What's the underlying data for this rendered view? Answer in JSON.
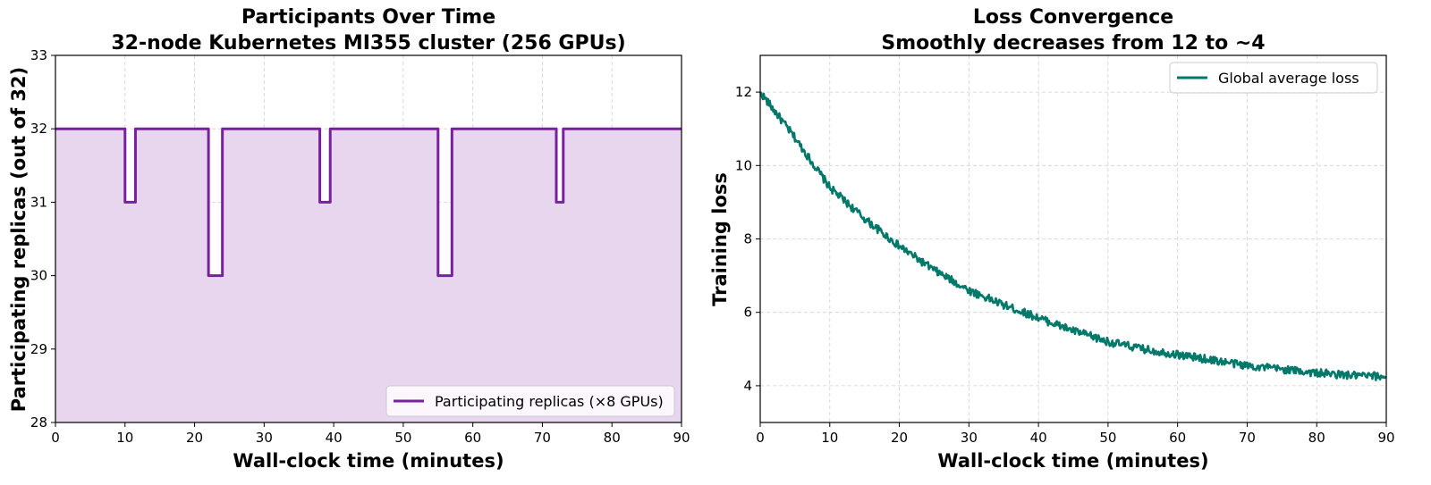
{
  "chart_data": [
    {
      "type": "line",
      "title_lines": [
        "Participants Over Time",
        "32-node Kubernetes MI355 cluster (256 GPUs)"
      ],
      "xlabel": "Wall-clock time (minutes)",
      "ylabel": "Participating replicas (out of 32)",
      "xlim": [
        0,
        90
      ],
      "ylim": [
        28,
        33
      ],
      "xticks": [
        0,
        10,
        20,
        30,
        40,
        50,
        60,
        70,
        80,
        90
      ],
      "yticks": [
        28,
        29,
        30,
        31,
        32,
        33
      ],
      "grid": true,
      "step": true,
      "filled": true,
      "legend_position": "lower-right",
      "series": [
        {
          "name": "Participating replicas (×8 GPUs)",
          "color": "#7B1FA2",
          "fill_color": "#E8D5EE",
          "x": [
            0,
            10,
            10,
            11.5,
            11.5,
            22,
            22,
            24,
            24,
            38,
            38,
            39.5,
            39.5,
            55,
            55,
            57,
            57,
            72,
            72,
            73,
            73,
            90
          ],
          "y": [
            32,
            32,
            31,
            31,
            32,
            32,
            30,
            30,
            32,
            32,
            31,
            31,
            32,
            32,
            30,
            30,
            32,
            32,
            31,
            31,
            32,
            32
          ]
        }
      ]
    },
    {
      "type": "line",
      "title_lines": [
        "Loss Convergence",
        "Smoothly decreases from 12 to ~4"
      ],
      "xlabel": "Wall-clock time (minutes)",
      "ylabel": "Training loss",
      "xlim": [
        0,
        90
      ],
      "ylim": [
        3,
        13
      ],
      "xticks": [
        0,
        10,
        20,
        30,
        40,
        50,
        60,
        70,
        80,
        90
      ],
      "yticks": [
        4,
        6,
        8,
        10,
        12
      ],
      "grid": true,
      "legend_position": "upper-right",
      "series": [
        {
          "name": "Global average loss",
          "color": "#00796B",
          "x": [
            0,
            5,
            10,
            15,
            20,
            25,
            30,
            35,
            40,
            45,
            50,
            55,
            60,
            65,
            70,
            75,
            80,
            85,
            90
          ],
          "y": [
            12.0,
            10.75,
            9.4,
            8.55,
            7.8,
            7.15,
            6.6,
            6.2,
            5.85,
            5.5,
            5.2,
            5.0,
            4.85,
            4.7,
            4.55,
            4.45,
            4.35,
            4.28,
            4.25
          ]
        }
      ]
    }
  ]
}
